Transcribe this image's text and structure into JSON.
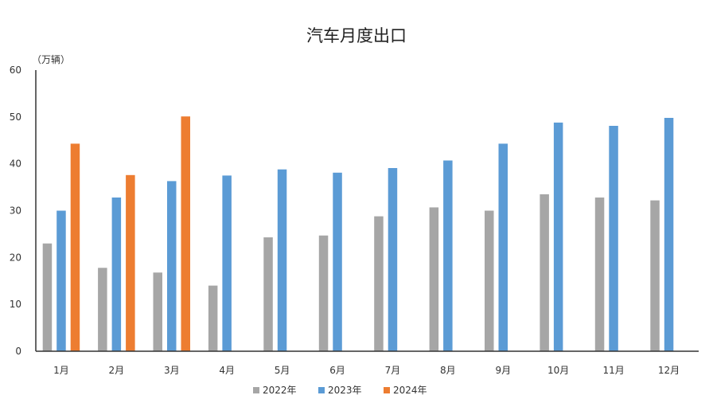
{
  "chart_data": {
    "type": "bar",
    "title": "汽车月度出口",
    "unit_label": "（万辆）",
    "categories": [
      "1月",
      "2月",
      "3月",
      "4月",
      "5月",
      "6月",
      "7月",
      "8月",
      "9月",
      "10月",
      "11月",
      "12月"
    ],
    "series": [
      {
        "name": "2022年",
        "color": "#a6a6a6",
        "values": [
          23.0,
          17.8,
          16.8,
          14.0,
          24.3,
          24.7,
          28.8,
          30.7,
          30.0,
          33.5,
          32.8,
          32.2
        ]
      },
      {
        "name": "2023年",
        "color": "#5b9bd5",
        "values": [
          30.0,
          32.8,
          36.3,
          37.5,
          38.8,
          38.1,
          39.1,
          40.7,
          44.3,
          48.8,
          48.1,
          49.8
        ]
      },
      {
        "name": "2024年",
        "color": "#ed7d31",
        "values": [
          44.3,
          37.6,
          50.1,
          null,
          null,
          null,
          null,
          null,
          null,
          null,
          null,
          null
        ]
      }
    ],
    "ylim": [
      0,
      60
    ],
    "yticks": [
      "0",
      "10",
      "20",
      "30",
      "40",
      "50",
      "60"
    ],
    "legend_position": "bottom",
    "grid": false
  }
}
